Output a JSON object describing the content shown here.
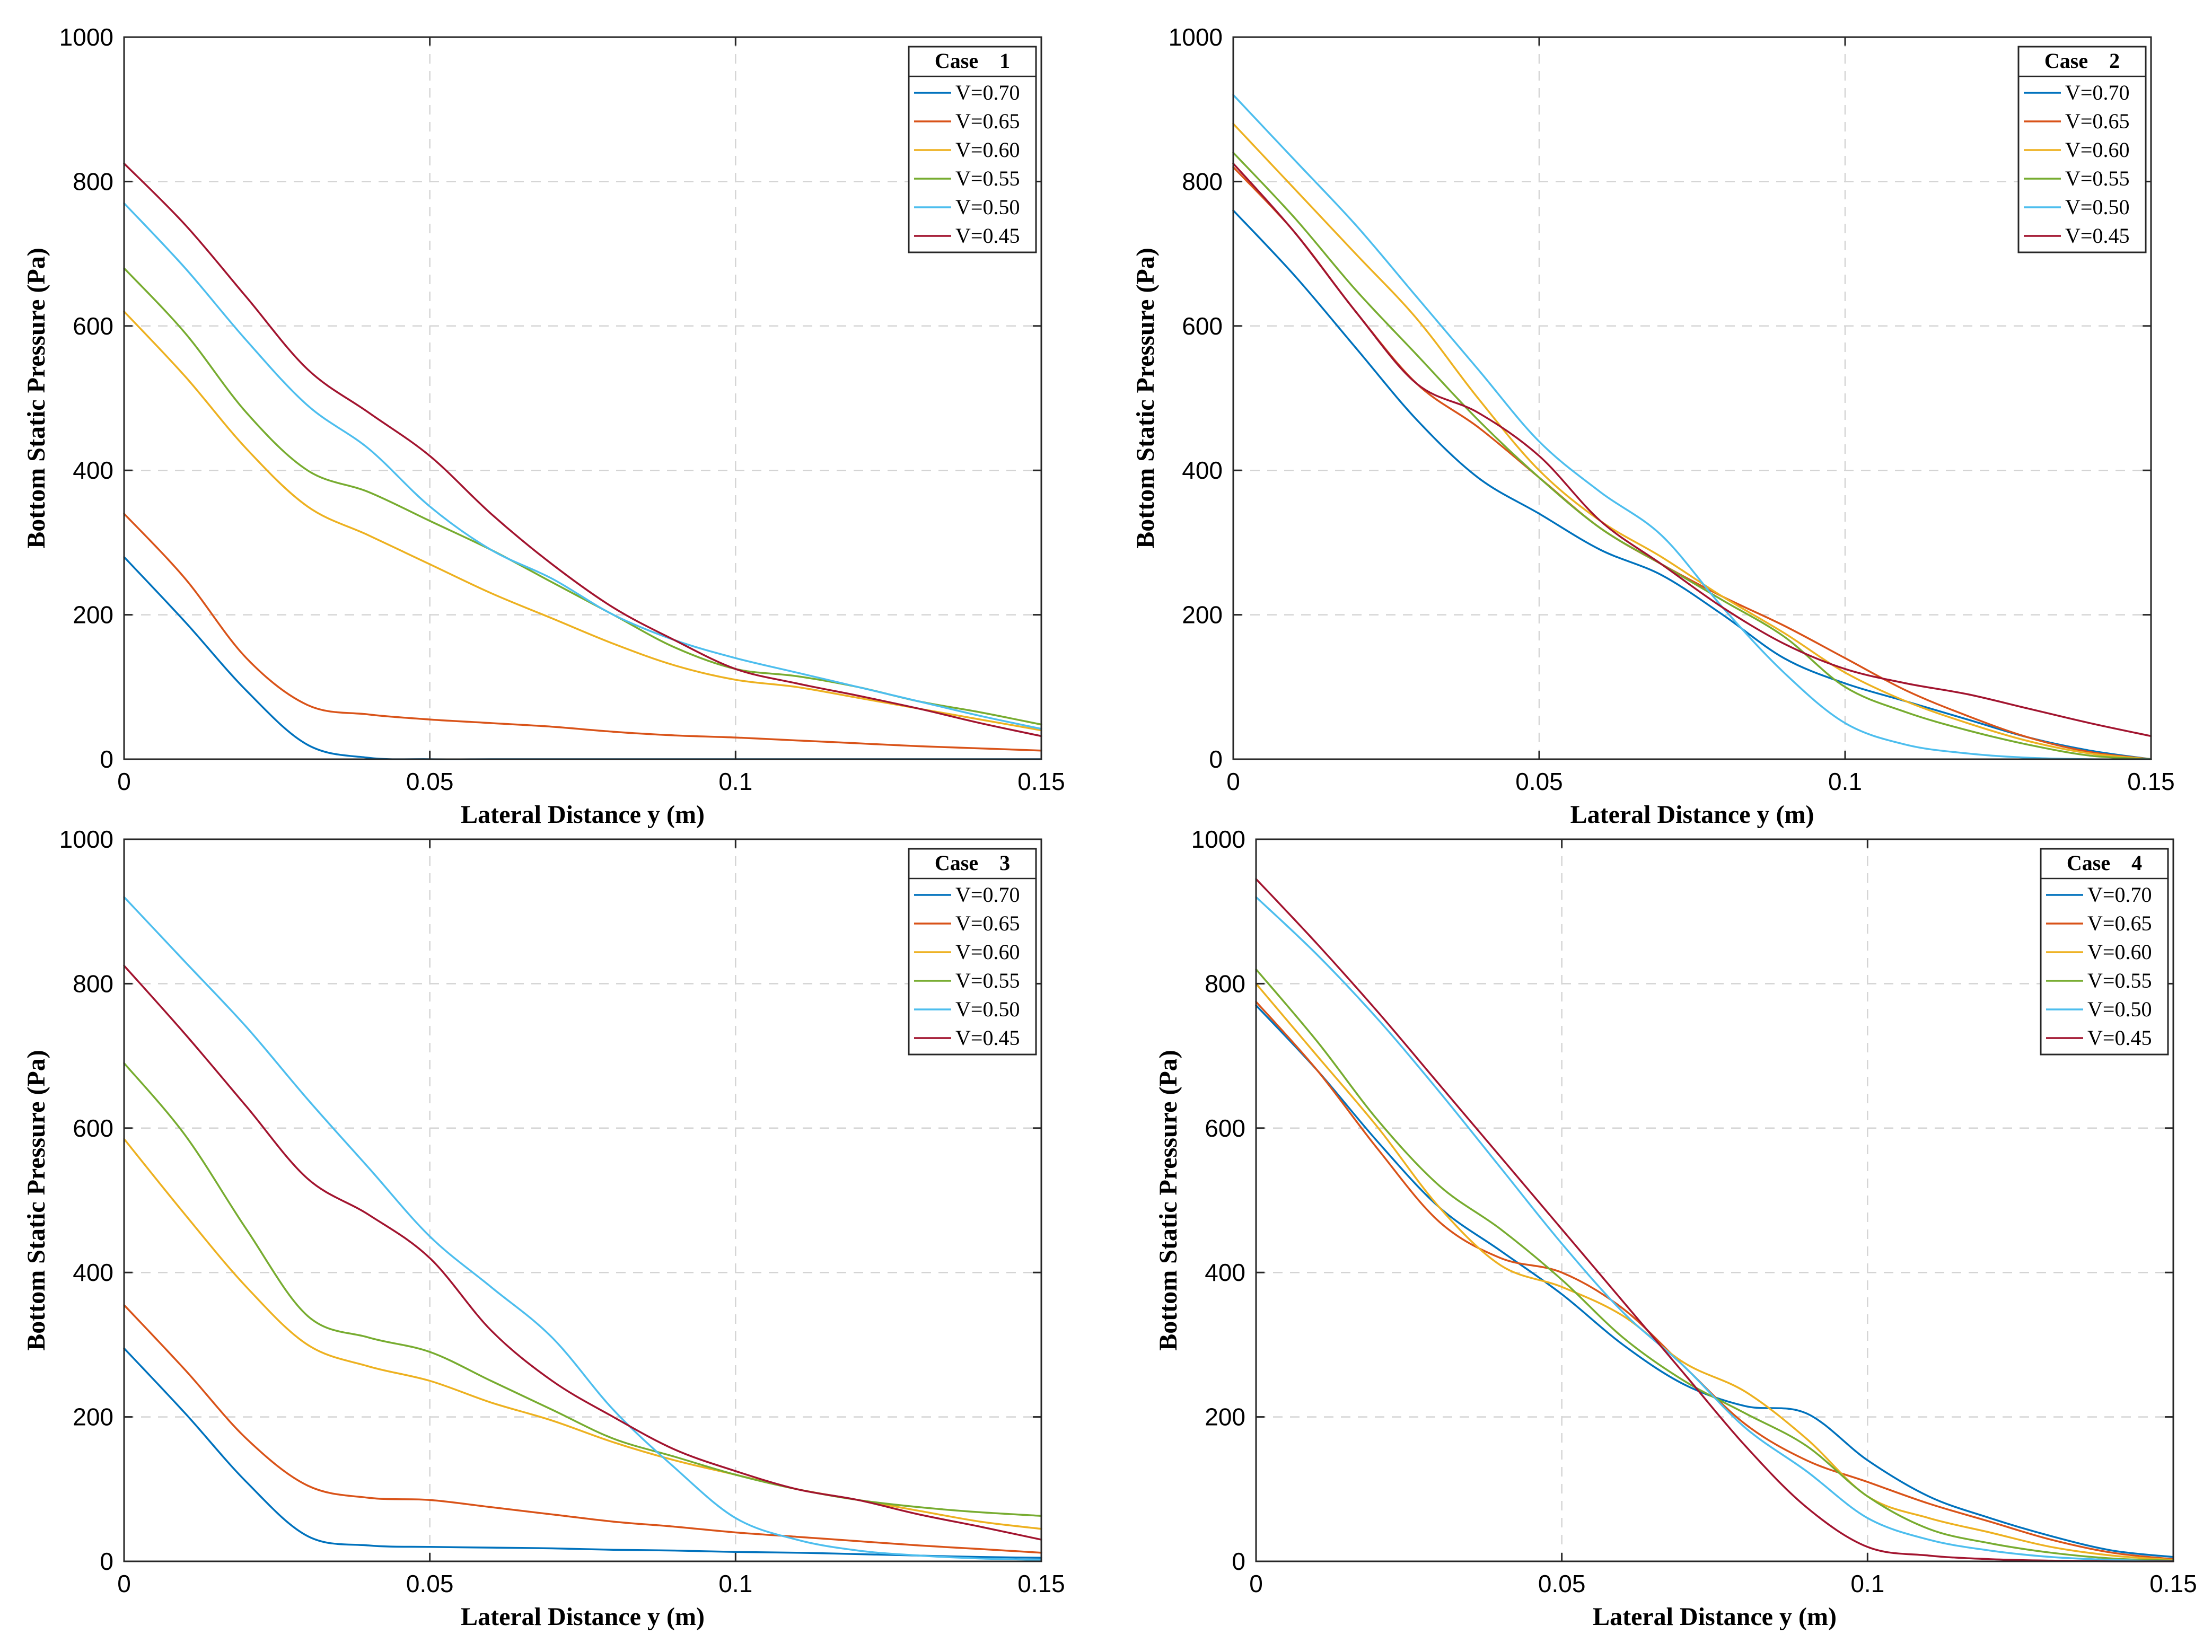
{
  "colors": {
    "V=0.70": "#0072bd",
    "V=0.65": "#d95319",
    "V=0.60": "#edb120",
    "V=0.55": "#77ac30",
    "V=0.50": "#4dbeee",
    "V=0.45": "#a2142f"
  },
  "chart_data": [
    {
      "type": "line",
      "title": "",
      "legend_title": "Case    1",
      "legend_position": "top-right",
      "xlabel": "Lateral Distance y (m)",
      "ylabel": "Bottom Static Pressure (Pa)",
      "xlim": [
        0,
        0.15
      ],
      "ylim": [
        0,
        1000
      ],
      "xticks": [
        0,
        0.05,
        0.1,
        0.15
      ],
      "xtick_labels": [
        "0",
        "0.05",
        "0.1",
        "0.15"
      ],
      "yticks": [
        0,
        200,
        400,
        600,
        800,
        1000
      ],
      "ytick_labels": [
        "0",
        "200",
        "400",
        "600",
        "800",
        "1000"
      ],
      "grid": true,
      "x": [
        0,
        0.01,
        0.02,
        0.03,
        0.04,
        0.05,
        0.06,
        0.07,
        0.08,
        0.09,
        0.1,
        0.11,
        0.12,
        0.13,
        0.14,
        0.15
      ],
      "series": [
        {
          "name": "V=0.70",
          "values": [
            280,
            190,
            95,
            20,
            2,
            0,
            0,
            0,
            0,
            0,
            0,
            0,
            0,
            0,
            0,
            0
          ]
        },
        {
          "name": "V=0.65",
          "values": [
            340,
            250,
            140,
            75,
            62,
            55,
            50,
            45,
            38,
            33,
            30,
            26,
            22,
            18,
            15,
            12
          ]
        },
        {
          "name": "V=0.60",
          "values": [
            620,
            530,
            430,
            350,
            310,
            270,
            230,
            195,
            160,
            130,
            110,
            100,
            85,
            70,
            55,
            40
          ]
        },
        {
          "name": "V=0.55",
          "values": [
            680,
            590,
            480,
            400,
            370,
            330,
            290,
            245,
            200,
            155,
            125,
            115,
            100,
            80,
            65,
            48
          ]
        },
        {
          "name": "V=0.50",
          "values": [
            770,
            680,
            580,
            490,
            430,
            350,
            290,
            250,
            200,
            165,
            140,
            120,
            100,
            80,
            60,
            42
          ]
        },
        {
          "name": "V=0.45",
          "values": [
            825,
            740,
            640,
            540,
            480,
            420,
            340,
            270,
            210,
            165,
            125,
            105,
            88,
            70,
            50,
            32
          ]
        }
      ]
    },
    {
      "type": "line",
      "title": "",
      "legend_title": "Case    2",
      "legend_position": "top-right",
      "xlabel": "Lateral Distance y (m)",
      "ylabel": "Bottom Static Pressure (Pa)",
      "xlim": [
        0,
        0.15
      ],
      "ylim": [
        0,
        1000
      ],
      "xticks": [
        0,
        0.05,
        0.1,
        0.15
      ],
      "xtick_labels": [
        "0",
        "0.05",
        "0.1",
        "0.15"
      ],
      "yticks": [
        0,
        200,
        400,
        600,
        800,
        1000
      ],
      "ytick_labels": [
        "0",
        "200",
        "400",
        "600",
        "800",
        "1000"
      ],
      "grid": true,
      "x": [
        0,
        0.01,
        0.02,
        0.03,
        0.04,
        0.05,
        0.06,
        0.07,
        0.08,
        0.09,
        0.1,
        0.11,
        0.12,
        0.13,
        0.14,
        0.15
      ],
      "series": [
        {
          "name": "V=0.70",
          "values": [
            760,
            670,
            570,
            470,
            390,
            340,
            290,
            255,
            200,
            140,
            105,
            80,
            55,
            30,
            12,
            0
          ]
        },
        {
          "name": "V=0.65",
          "values": [
            820,
            730,
            620,
            520,
            460,
            390,
            320,
            270,
            225,
            185,
            140,
            95,
            60,
            30,
            10,
            0
          ]
        },
        {
          "name": "V=0.60",
          "values": [
            880,
            790,
            700,
            610,
            500,
            400,
            330,
            280,
            225,
            175,
            120,
            80,
            50,
            25,
            8,
            0
          ]
        },
        {
          "name": "V=0.55",
          "values": [
            840,
            750,
            650,
            560,
            470,
            390,
            320,
            270,
            220,
            170,
            100,
            65,
            40,
            20,
            5,
            0
          ]
        },
        {
          "name": "V=0.50",
          "values": [
            920,
            830,
            740,
            640,
            540,
            440,
            370,
            310,
            210,
            120,
            50,
            20,
            8,
            2,
            0,
            0
          ]
        },
        {
          "name": "V=0.45",
          "values": [
            825,
            730,
            620,
            520,
            480,
            420,
            330,
            270,
            210,
            160,
            125,
            105,
            90,
            70,
            50,
            32
          ]
        }
      ]
    },
    {
      "type": "line",
      "title": "",
      "legend_title": "Case    3",
      "legend_position": "top-right",
      "xlabel": "Lateral Distance y (m)",
      "ylabel": "Bottom Static Pressure (Pa)",
      "xlim": [
        0,
        0.15
      ],
      "ylim": [
        0,
        1000
      ],
      "xticks": [
        0,
        0.05,
        0.1,
        0.15
      ],
      "xtick_labels": [
        "0",
        "0.05",
        "0.1",
        "0.15"
      ],
      "yticks": [
        0,
        200,
        400,
        600,
        800,
        1000
      ],
      "ytick_labels": [
        "0",
        "200",
        "400",
        "600",
        "800",
        "1000"
      ],
      "grid": true,
      "x": [
        0,
        0.01,
        0.02,
        0.03,
        0.04,
        0.05,
        0.06,
        0.07,
        0.08,
        0.09,
        0.1,
        0.11,
        0.12,
        0.13,
        0.14,
        0.15
      ],
      "series": [
        {
          "name": "V=0.70",
          "values": [
            295,
            205,
            110,
            35,
            22,
            20,
            19,
            18,
            16,
            15,
            13,
            12,
            10,
            8,
            6,
            5
          ]
        },
        {
          "name": "V=0.65",
          "values": [
            355,
            265,
            170,
            105,
            88,
            85,
            75,
            65,
            55,
            48,
            40,
            34,
            28,
            22,
            17,
            12
          ]
        },
        {
          "name": "V=0.60",
          "values": [
            585,
            480,
            380,
            300,
            270,
            250,
            220,
            195,
            165,
            140,
            120,
            100,
            85,
            70,
            55,
            45
          ]
        },
        {
          "name": "V=0.55",
          "values": [
            690,
            590,
            460,
            340,
            310,
            290,
            250,
            210,
            170,
            145,
            120,
            100,
            85,
            75,
            68,
            63
          ]
        },
        {
          "name": "V=0.50",
          "values": [
            920,
            830,
            740,
            640,
            545,
            450,
            380,
            310,
            210,
            130,
            60,
            30,
            15,
            8,
            4,
            2
          ]
        },
        {
          "name": "V=0.45",
          "values": [
            825,
            730,
            630,
            530,
            480,
            420,
            320,
            250,
            200,
            155,
            125,
            100,
            85,
            65,
            48,
            30
          ]
        }
      ]
    },
    {
      "type": "line",
      "title": "",
      "legend_title": "Case    4",
      "legend_position": "top-right",
      "xlabel": "Lateral Distance y (m)",
      "ylabel": "Bottom Static Pressure (Pa)",
      "xlim": [
        0,
        0.15
      ],
      "ylim": [
        0,
        1000
      ],
      "xticks": [
        0,
        0.05,
        0.1,
        0.15
      ],
      "xtick_labels": [
        "0",
        "0.05",
        "0.1",
        "0.15"
      ],
      "yticks": [
        0,
        200,
        400,
        600,
        800,
        1000
      ],
      "ytick_labels": [
        "0",
        "200",
        "400",
        "600",
        "800",
        "1000"
      ],
      "grid": true,
      "x": [
        0,
        0.01,
        0.02,
        0.03,
        0.04,
        0.05,
        0.06,
        0.07,
        0.08,
        0.09,
        0.1,
        0.11,
        0.12,
        0.13,
        0.14,
        0.15
      ],
      "series": [
        {
          "name": "V=0.70",
          "values": [
            770,
            680,
            580,
            490,
            430,
            370,
            300,
            245,
            215,
            205,
            140,
            90,
            60,
            35,
            15,
            6
          ]
        },
        {
          "name": "V=0.65",
          "values": [
            775,
            680,
            570,
            470,
            420,
            400,
            350,
            270,
            190,
            140,
            110,
            80,
            55,
            30,
            12,
            3
          ]
        },
        {
          "name": "V=0.60",
          "values": [
            800,
            700,
            600,
            490,
            410,
            380,
            340,
            275,
            235,
            170,
            90,
            60,
            40,
            20,
            8,
            2
          ]
        },
        {
          "name": "V=0.55",
          "values": [
            820,
            720,
            610,
            520,
            460,
            390,
            310,
            250,
            205,
            160,
            90,
            45,
            25,
            12,
            4,
            1
          ]
        },
        {
          "name": "V=0.50",
          "values": [
            920,
            840,
            750,
            650,
            545,
            440,
            345,
            270,
            185,
            125,
            60,
            30,
            15,
            6,
            2,
            0
          ]
        },
        {
          "name": "V=0.45",
          "values": [
            945,
            855,
            760,
            660,
            560,
            460,
            360,
            260,
            160,
            75,
            20,
            8,
            3,
            1,
            0,
            0
          ]
        }
      ]
    }
  ]
}
